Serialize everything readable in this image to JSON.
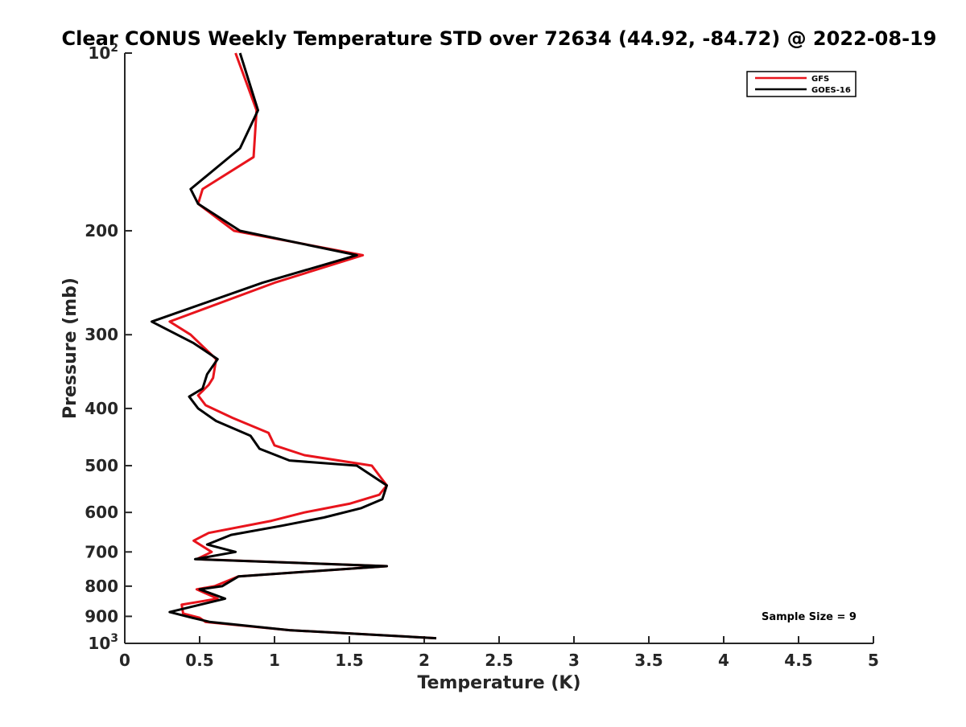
{
  "chart_data": {
    "type": "line",
    "title": "Clear CONUS Weekly Temperature STD over 72634 (44.92, -84.72) @ 2022-08-19",
    "xlabel": "Temperature (K)",
    "ylabel": "Pressure (mb)",
    "xlim": [
      0,
      5
    ],
    "ylim": [
      100,
      1000
    ],
    "y_scale": "log",
    "y_reversed": true,
    "x_ticks": [
      "0",
      "0.5",
      "1",
      "1.5",
      "2",
      "2.5",
      "3",
      "3.5",
      "4",
      "4.5",
      "5"
    ],
    "y_tick_values": [
      100,
      200,
      300,
      400,
      500,
      600,
      700,
      800,
      900,
      1000
    ],
    "y_tick_labels": [
      "10^2",
      "200",
      "300",
      "400",
      "500",
      "600",
      "700",
      "800",
      "900",
      "10^3"
    ],
    "grid": false,
    "legend_position": "top-right",
    "annotation": "Sample Size = 9",
    "series": [
      {
        "name": "GFS",
        "color": "#e8141c",
        "points": [
          [
            0.74,
            100
          ],
          [
            0.88,
            125
          ],
          [
            0.86,
            150
          ],
          [
            0.52,
            170
          ],
          [
            0.49,
            180
          ],
          [
            0.73,
            200
          ],
          [
            1.59,
            220
          ],
          [
            1.0,
            245
          ],
          [
            0.3,
            285
          ],
          [
            0.44,
            300
          ],
          [
            0.61,
            330
          ],
          [
            0.59,
            355
          ],
          [
            0.56,
            365
          ],
          [
            0.49,
            380
          ],
          [
            0.54,
            395
          ],
          [
            0.72,
            415
          ],
          [
            0.96,
            440
          ],
          [
            1.0,
            462
          ],
          [
            1.2,
            480
          ],
          [
            1.65,
            500
          ],
          [
            1.75,
            540
          ],
          [
            1.7,
            560
          ],
          [
            1.5,
            580
          ],
          [
            1.2,
            600
          ],
          [
            0.98,
            620
          ],
          [
            0.56,
            650
          ],
          [
            0.46,
            670
          ],
          [
            0.58,
            700
          ],
          [
            0.48,
            720
          ],
          [
            1.75,
            740
          ],
          [
            0.76,
            770
          ],
          [
            0.6,
            800
          ],
          [
            0.48,
            810
          ],
          [
            0.62,
            840
          ],
          [
            0.38,
            860
          ],
          [
            0.39,
            890
          ],
          [
            0.5,
            905
          ],
          [
            0.54,
            920
          ],
          [
            1.1,
            950
          ],
          [
            2.08,
            980
          ]
        ]
      },
      {
        "name": "GOES-16",
        "color": "#000000",
        "points": [
          [
            0.77,
            100
          ],
          [
            0.89,
            125
          ],
          [
            0.77,
            145
          ],
          [
            0.44,
            170
          ],
          [
            0.49,
            180
          ],
          [
            0.77,
            200
          ],
          [
            1.55,
            220
          ],
          [
            0.92,
            245
          ],
          [
            0.18,
            285
          ],
          [
            0.46,
            310
          ],
          [
            0.62,
            330
          ],
          [
            0.55,
            350
          ],
          [
            0.52,
            370
          ],
          [
            0.43,
            382
          ],
          [
            0.49,
            400
          ],
          [
            0.61,
            420
          ],
          [
            0.84,
            445
          ],
          [
            0.9,
            468
          ],
          [
            1.1,
            490
          ],
          [
            1.55,
            500
          ],
          [
            1.75,
            540
          ],
          [
            1.72,
            570
          ],
          [
            1.58,
            590
          ],
          [
            1.33,
            612
          ],
          [
            1.05,
            632
          ],
          [
            0.71,
            655
          ],
          [
            0.55,
            680
          ],
          [
            0.74,
            700
          ],
          [
            0.47,
            720
          ],
          [
            1.75,
            740
          ],
          [
            0.76,
            770
          ],
          [
            0.65,
            800
          ],
          [
            0.5,
            810
          ],
          [
            0.67,
            840
          ],
          [
            0.3,
            885
          ],
          [
            0.45,
            905
          ],
          [
            0.57,
            920
          ],
          [
            1.1,
            950
          ],
          [
            2.08,
            980
          ]
        ]
      }
    ]
  }
}
